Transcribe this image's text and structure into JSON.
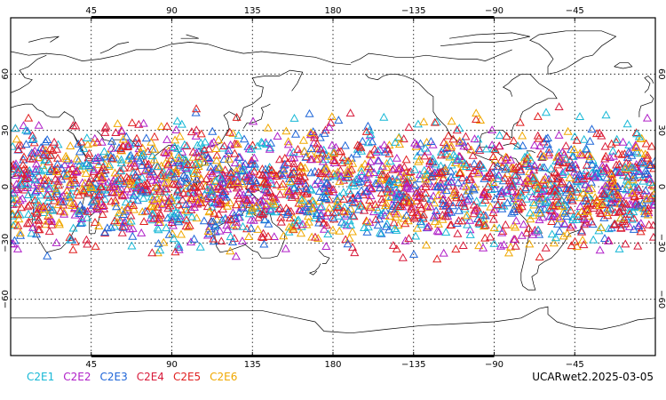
{
  "map": {
    "projection": "cylindrical equidistant",
    "lon_range": [
      0,
      360
    ],
    "lat_range": [
      -90,
      90
    ],
    "top_lon_ticks": [
      {
        "lon": 45,
        "label": "45"
      },
      {
        "lon": 90,
        "label": "90"
      },
      {
        "lon": 135,
        "label": "135"
      },
      {
        "lon": 180,
        "label": "180"
      },
      {
        "lon": 225,
        "label": "−135"
      },
      {
        "lon": 270,
        "label": "−90"
      },
      {
        "lon": 315,
        "label": "−45"
      }
    ],
    "bottom_lon_ticks": [
      {
        "lon": 45,
        "label": "45"
      },
      {
        "lon": 90,
        "label": "90"
      },
      {
        "lon": 135,
        "label": "135"
      },
      {
        "lon": 180,
        "label": "180"
      },
      {
        "lon": 225,
        "label": "−135"
      },
      {
        "lon": 270,
        "label": "−90"
      },
      {
        "lon": 315,
        "label": "−45"
      }
    ],
    "lat_ticks": [
      {
        "lat": 60,
        "label": "60"
      },
      {
        "lat": 30,
        "label": "30"
      },
      {
        "lat": 0,
        "label": "0"
      },
      {
        "lat": -30,
        "label": "−30"
      },
      {
        "lat": -60,
        "label": "−60"
      }
    ],
    "grid": true,
    "marker": "open-triangle",
    "point_lat_band": [
      -45,
      45
    ]
  },
  "legend": {
    "items": [
      {
        "label": "C2E1",
        "color": "#17b8d6"
      },
      {
        "label": "C2E2",
        "color": "#b020c8"
      },
      {
        "label": "C2E3",
        "color": "#1f66d8"
      },
      {
        "label": "C2E4",
        "color": "#d81a3a"
      },
      {
        "label": "C2E5",
        "color": "#e02020"
      },
      {
        "label": "C2E6",
        "color": "#f0a800"
      }
    ]
  },
  "product_label": "UCARwet2.2025-03-05"
}
